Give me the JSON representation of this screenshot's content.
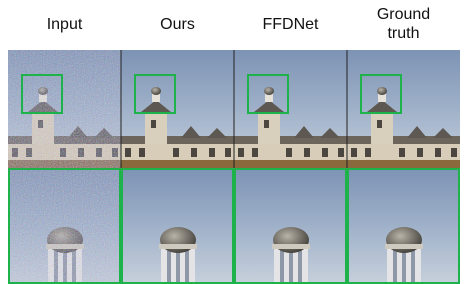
{
  "columns": [
    "Input",
    "Ours",
    "FFDNet",
    "Ground truth"
  ]
}
